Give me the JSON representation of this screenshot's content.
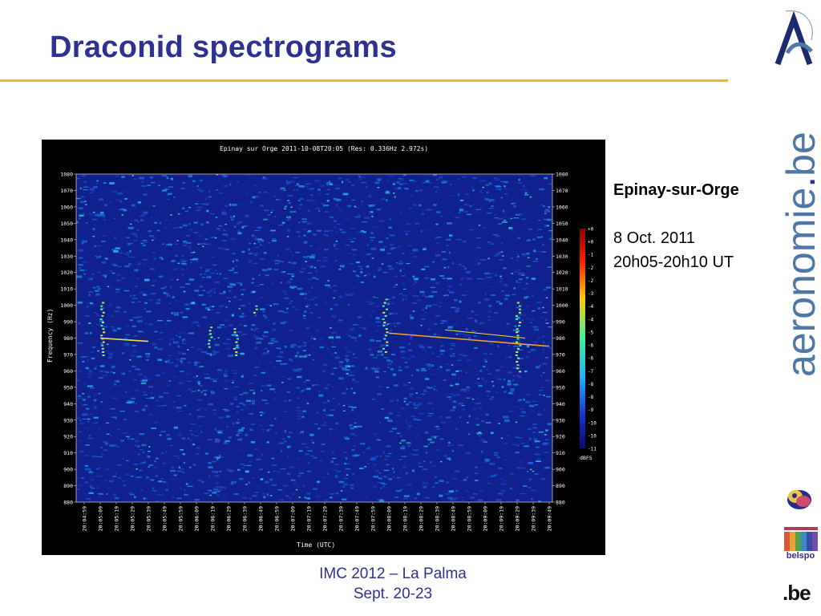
{
  "slide": {
    "title": "Draconid spectrograms",
    "station": "Epinay-sur-Orge",
    "date": "8 Oct. 2011",
    "time_range": "20h05-20h10 UT",
    "footer_line1": "IMC 2012 – La Palma",
    "footer_line2": "Sept. 20-23",
    "brand": "aeronomie",
    "brand_dot": ".",
    "brand_suffix": "be",
    "belspo_label": "belspo",
    "be_label": ".be"
  },
  "colors": {
    "title": "#2e3192",
    "rule": "#f2b233",
    "brand": "#4c77a6",
    "spectrogram_bg": "#10208c"
  },
  "spectrogram": {
    "header": "Epinay sur Orge 2011-10-08T20:05 (Res: 0.336Hz 2.972s)",
    "ylabel": "Frequency (Hz)",
    "xlabel": "Time (UTC)",
    "y_ticks": [
      "1080",
      "1070",
      "1060",
      "1050",
      "1040",
      "1030",
      "1020",
      "1010",
      "1000",
      "990",
      "980",
      "970",
      "960",
      "950",
      "940",
      "930",
      "920",
      "910",
      "900",
      "890",
      "880"
    ],
    "x_ticks": [
      "20:04:59",
      "20:05:09",
      "20:05:19",
      "20:05:29",
      "20:05:39",
      "20:05:49",
      "20:05:59",
      "20:06:09",
      "20:06:19",
      "20:06:29",
      "20:06:39",
      "20:06:49",
      "20:06:59",
      "20:07:09",
      "20:07:19",
      "20:07:29",
      "20:07:39",
      "20:07:49",
      "20:07:59",
      "20:08:09",
      "20:08:19",
      "20:08:29",
      "20:08:39",
      "20:08:49",
      "20:08:59",
      "20:09:09",
      "20:09:19",
      "20:09:29",
      "20:09:39",
      "20:09:49"
    ],
    "colorbar_ticks": [
      "+0",
      "+0",
      "-1",
      "-2",
      "-2",
      "-3",
      "-4",
      "-4",
      "-5",
      "-6",
      "-6",
      "-7",
      "-8",
      "-8",
      "-9",
      "-10",
      "-10",
      "-11"
    ],
    "colorbar_unit": "dBFS"
  }
}
